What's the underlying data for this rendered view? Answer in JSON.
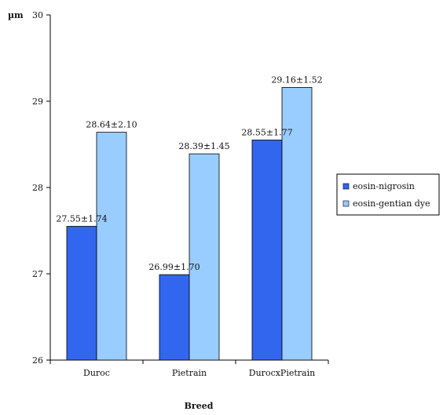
{
  "chart_data": {
    "type": "bar",
    "title": "",
    "xlabel": "Breed",
    "ylabel": "µm",
    "ylim": [
      26,
      30
    ],
    "yticks": [
      26,
      27,
      28,
      29,
      30
    ],
    "grid": false,
    "legend_position": "right",
    "categories": [
      "Duroc",
      "Pietrain",
      "DurocxPietrain"
    ],
    "series": [
      {
        "name": "eosin-nigrosin",
        "color": "#3366ee",
        "values": [
          27.55,
          26.99,
          28.55
        ],
        "labels": [
          "27.55±1.74",
          "26.99±1.70",
          "28.55±1.77"
        ]
      },
      {
        "name": "eosin-gentian dye",
        "color": "#99ccff",
        "values": [
          28.64,
          28.39,
          29.16
        ],
        "labels": [
          "28.64±2.10",
          "28.39±1.45",
          "29.16±1.52"
        ]
      }
    ]
  }
}
